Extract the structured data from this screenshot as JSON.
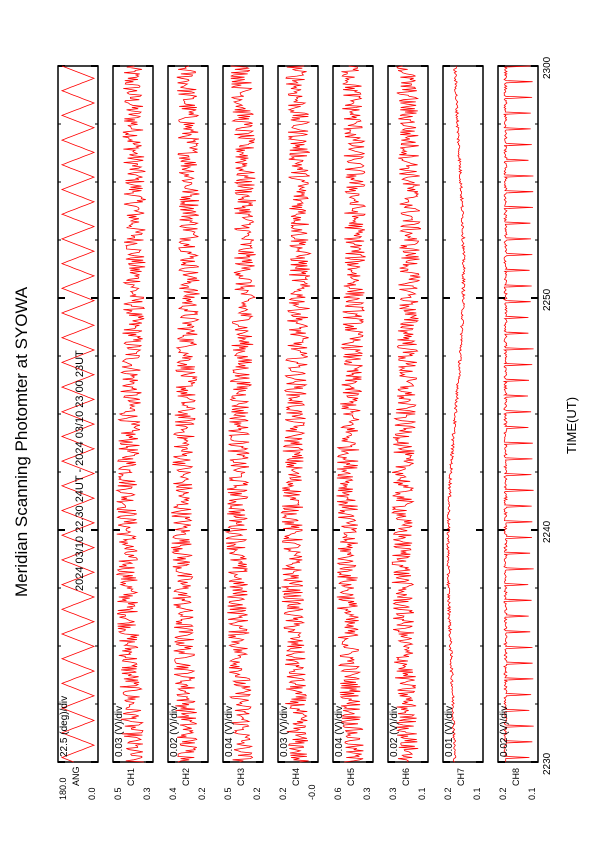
{
  "chart_data": {
    "type": "line",
    "title": "Meridian Scanning Photomter at SYOWA",
    "header": "2024 03/10 22.30 24UT - 2024 03/10 23 00 23UT",
    "xlabel": "TIME(UT)",
    "x_ticks": [
      "2230",
      "2240",
      "2250",
      "2300"
    ],
    "xlim": [
      "22:30",
      "23:00"
    ],
    "line_color": "#ff0000",
    "panels": [
      {
        "id": 1,
        "scale": "22.5 (deg)/div",
        "ylabel": "ANG",
        "ytick_top": "180.0",
        "ytick_bottom": "0.0",
        "signal": "sawtooth"
      },
      {
        "id": 2,
        "scale": "0.03 (V)/div",
        "ylabel": "CH1",
        "ytick_top": "0.5",
        "ytick_bottom": "0.3",
        "signal": "noise"
      },
      {
        "id": 3,
        "scale": "0.02 (V)/div",
        "ylabel": "CH2",
        "ytick_top": "0.4",
        "ytick_bottom": "0.2",
        "signal": "noise"
      },
      {
        "id": 4,
        "scale": "0.04 (V)/div",
        "ylabel": "CH3",
        "ytick_top": "0.5",
        "ytick_bottom": "0.2",
        "signal": "noise"
      },
      {
        "id": 5,
        "scale": "0.03 (V)/div",
        "ylabel": "CH4",
        "ytick_top": "0.2",
        "ytick_bottom": "-0.0",
        "signal": "noise"
      },
      {
        "id": 6,
        "scale": "0.04 (V)/div",
        "ylabel": "CH5",
        "ytick_top": "0.6",
        "ytick_bottom": "0.3",
        "signal": "noise"
      },
      {
        "id": 7,
        "scale": "0.02 (V)/div",
        "ylabel": "CH6",
        "ytick_top": "0.3",
        "ytick_bottom": "0.1",
        "signal": "noise"
      },
      {
        "id": 8,
        "scale": "0.01 (V)/div",
        "ylabel": "CH7",
        "ytick_top": "0.2",
        "ytick_bottom": "0.1",
        "signal": "smooth"
      },
      {
        "id": 9,
        "scale": "0.02 (V)/div",
        "ylabel": "CH8",
        "ytick_top": "0.2",
        "ytick_bottom": "0.1",
        "signal": "spikes"
      }
    ]
  }
}
